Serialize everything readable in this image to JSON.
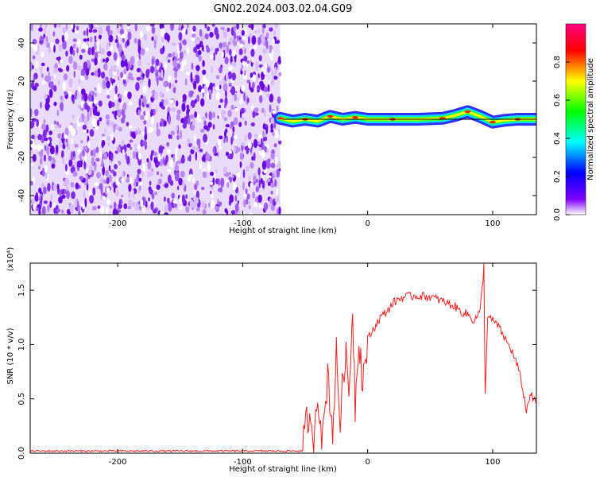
{
  "figure": {
    "title": "GN02.2024.003.02.04.G09"
  },
  "chart_data": [
    {
      "type": "heatmap",
      "xlabel": "Height of straight line (km)",
      "ylabel": "Frequency (Hz)",
      "xlim": [
        -270,
        135
      ],
      "ylim": [
        -50,
        50
      ],
      "x_ticks": [
        -200,
        -100,
        0,
        100
      ],
      "y_ticks": [
        -40,
        -20,
        0,
        20,
        40
      ],
      "colorbar": {
        "label": "Normalized spectral amplitude",
        "range": [
          0,
          1
        ],
        "ticks": [
          0.0,
          0.2,
          0.4,
          0.6,
          0.8
        ],
        "tick_labels": [
          "0.0",
          "0.2",
          "0.4",
          "0.6",
          "0.8"
        ],
        "colormap": [
          "#ff00ff",
          "#ff0000",
          "#ffff00",
          "#00ff00",
          "#00ffff",
          "#0000ff",
          "#ffffff"
        ]
      },
      "noise_region": {
        "x_range": [
          -270,
          -70
        ],
        "color": "#7a1de0"
      },
      "signal_track": [
        {
          "x": -70,
          "y": 0.5
        },
        {
          "x": -60,
          "y": -1
        },
        {
          "x": -50,
          "y": 0
        },
        {
          "x": -40,
          "y": -1
        },
        {
          "x": -30,
          "y": 1.5
        },
        {
          "x": -20,
          "y": 0
        },
        {
          "x": -10,
          "y": 1
        },
        {
          "x": 0,
          "y": 0
        },
        {
          "x": 20,
          "y": 0
        },
        {
          "x": 40,
          "y": 0
        },
        {
          "x": 60,
          "y": 0.5
        },
        {
          "x": 70,
          "y": 2
        },
        {
          "x": 80,
          "y": 4
        },
        {
          "x": 90,
          "y": 1.5
        },
        {
          "x": 100,
          "y": -1.5
        },
        {
          "x": 110,
          "y": -0.5
        },
        {
          "x": 120,
          "y": 0
        },
        {
          "x": 135,
          "y": 0
        }
      ],
      "reference_line": {
        "y": 0,
        "x_range": [
          -68,
          135
        ]
      }
    },
    {
      "type": "line",
      "xlabel": "Height of straight line (km)",
      "ylabel": "SNR (10 * v/v)",
      "y_multiplier": "(x10⁴)",
      "xlim": [
        -270,
        135
      ],
      "ylim": [
        0,
        1.75
      ],
      "x_ticks": [
        -200,
        -100,
        0,
        100
      ],
      "y_ticks": [
        0.0,
        0.5,
        1.0,
        1.5
      ],
      "y_tick_labels": [
        "0.0",
        "0.5",
        "1.0",
        "1.5"
      ],
      "series": [
        {
          "color": "#ee2020",
          "points": [
            {
              "x": -270,
              "y": 0.02
            },
            {
              "x": -200,
              "y": 0.02
            },
            {
              "x": -100,
              "y": 0.02
            },
            {
              "x": -52,
              "y": 0.02
            },
            {
              "x": -48,
              "y": 0.35
            },
            {
              "x": -44,
              "y": 0.05
            },
            {
              "x": -40,
              "y": 0.6
            },
            {
              "x": -36,
              "y": 0.1
            },
            {
              "x": -32,
              "y": 0.75
            },
            {
              "x": -28,
              "y": 0.2
            },
            {
              "x": -25,
              "y": 0.9
            },
            {
              "x": -22,
              "y": 0.3
            },
            {
              "x": -18,
              "y": 0.95
            },
            {
              "x": -15,
              "y": 0.55
            },
            {
              "x": -12,
              "y": 1.35
            },
            {
              "x": -10,
              "y": 0.45
            },
            {
              "x": -7,
              "y": 1.1
            },
            {
              "x": -4,
              "y": 0.65
            },
            {
              "x": 0,
              "y": 1.05
            },
            {
              "x": 5,
              "y": 1.15
            },
            {
              "x": 10,
              "y": 1.25
            },
            {
              "x": 15,
              "y": 1.3
            },
            {
              "x": 20,
              "y": 1.38
            },
            {
              "x": 25,
              "y": 1.42
            },
            {
              "x": 30,
              "y": 1.44
            },
            {
              "x": 40,
              "y": 1.45
            },
            {
              "x": 50,
              "y": 1.44
            },
            {
              "x": 60,
              "y": 1.4
            },
            {
              "x": 70,
              "y": 1.35
            },
            {
              "x": 75,
              "y": 1.3
            },
            {
              "x": 80,
              "y": 1.28
            },
            {
              "x": 85,
              "y": 1.22
            },
            {
              "x": 90,
              "y": 1.3
            },
            {
              "x": 93,
              "y": 1.72
            },
            {
              "x": 94,
              "y": 0.55
            },
            {
              "x": 96,
              "y": 1.25
            },
            {
              "x": 100,
              "y": 1.22
            },
            {
              "x": 104,
              "y": 1.18
            },
            {
              "x": 110,
              "y": 1.05
            },
            {
              "x": 115,
              "y": 0.95
            },
            {
              "x": 120,
              "y": 0.8
            },
            {
              "x": 124,
              "y": 0.6
            },
            {
              "x": 127,
              "y": 0.38
            },
            {
              "x": 130,
              "y": 0.55
            },
            {
              "x": 135,
              "y": 0.45
            }
          ]
        }
      ]
    }
  ]
}
